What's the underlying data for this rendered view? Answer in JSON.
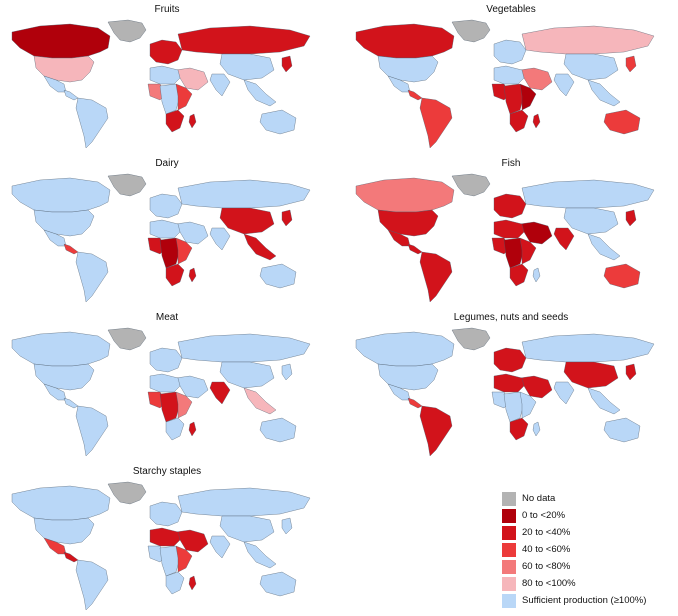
{
  "panels": [
    {
      "title": "Fruits",
      "fills": {
        "canada": "c0",
        "usa": "c4",
        "greenland": "nodata",
        "mexico": "c6",
        "central": "c6",
        "south_america": "c6",
        "europe": "c1",
        "russia": "c1",
        "middle_east": "c4",
        "africa_n": "c6",
        "africa_w": "c3",
        "africa_c": "c6",
        "africa_e": "c2",
        "africa_s": "c1",
        "madagascar": "c1",
        "india": "c6",
        "china": "c6",
        "se_asia": "c6",
        "japan": "c1",
        "australia": "c6"
      }
    },
    {
      "title": "Vegetables",
      "fills": {
        "canada": "c1",
        "usa": "c6",
        "greenland": "nodata",
        "mexico": "c6",
        "central": "c2",
        "south_america": "c2",
        "europe": "c6",
        "russia": "c4",
        "middle_east": "c3",
        "africa_n": "c6",
        "africa_w": "c1",
        "africa_c": "c1",
        "africa_e": "c0",
        "africa_s": "c1",
        "madagascar": "c1",
        "india": "c6",
        "china": "c6",
        "se_asia": "c6",
        "japan": "c2",
        "australia": "c2"
      }
    },
    {
      "title": "Dairy",
      "fills": {
        "canada": "c6",
        "usa": "c6",
        "greenland": "nodata",
        "mexico": "c6",
        "central": "c2",
        "south_america": "c6",
        "europe": "c6",
        "russia": "c6",
        "middle_east": "c6",
        "africa_n": "c6",
        "africa_w": "c1",
        "africa_c": "c0",
        "africa_e": "c2",
        "africa_s": "c1",
        "madagascar": "c1",
        "india": "c6",
        "china": "c1",
        "se_asia": "c1",
        "japan": "c1",
        "australia": "c6"
      }
    },
    {
      "title": "Fish",
      "fills": {
        "canada": "c3",
        "usa": "c1",
        "greenland": "nodata",
        "mexico": "c1",
        "central": "c1",
        "south_america": "c1",
        "europe": "c1",
        "russia": "c6",
        "middle_east": "c0",
        "africa_n": "c1",
        "africa_w": "c1",
        "africa_c": "c0",
        "africa_e": "c1",
        "africa_s": "c1",
        "madagascar": "c6",
        "india": "c1",
        "china": "c6",
        "se_asia": "c6",
        "japan": "c1",
        "australia": "c2"
      }
    },
    {
      "title": "Meat",
      "fills": {
        "canada": "c6",
        "usa": "c6",
        "greenland": "nodata",
        "mexico": "c6",
        "central": "c6",
        "south_america": "c6",
        "europe": "c6",
        "russia": "c6",
        "middle_east": "c6",
        "africa_n": "c5",
        "africa_w": "c2",
        "africa_c": "c1",
        "africa_e": "c3",
        "africa_s": "c6",
        "madagascar": "c1",
        "india": "c1",
        "china": "c6",
        "se_asia": "c4",
        "japan": "c6",
        "australia": "c6"
      }
    },
    {
      "title": "Legumes, nuts and seeds",
      "fills": {
        "canada": "c6",
        "usa": "c6",
        "greenland": "nodata",
        "mexico": "c5",
        "central": "c2",
        "south_america": "c1",
        "europe": "c1",
        "russia": "c6",
        "middle_east": "c1",
        "africa_n": "c1",
        "africa_w": "c6",
        "africa_c": "c6",
        "africa_e": "c6",
        "africa_s": "c1",
        "madagascar": "c6",
        "india": "c6",
        "china": "c1",
        "se_asia": "c6",
        "japan": "c1",
        "australia": "c6"
      }
    },
    {
      "title": "Starchy staples",
      "fills": {
        "canada": "c6",
        "usa": "c6",
        "greenland": "nodata",
        "mexico": "c2",
        "central": "c1",
        "south_america": "c6",
        "europe": "c6",
        "russia": "c6",
        "middle_east": "c1",
        "africa_n": "c1",
        "africa_w": "c6",
        "africa_c": "c6",
        "africa_e": "c2",
        "africa_s": "c6",
        "madagascar": "c1",
        "india": "c6",
        "china": "c6",
        "se_asia": "c6",
        "japan": "c5",
        "australia": "c6"
      }
    }
  ],
  "legend": [
    {
      "key": "nodata",
      "label": "No data",
      "color": "#b3b3b3"
    },
    {
      "key": "c0",
      "label": "0 to <20%",
      "color": "#b0000b"
    },
    {
      "key": "c1",
      "label": "20 to <40%",
      "color": "#d2131b"
    },
    {
      "key": "c2",
      "label": "40 to <60%",
      "color": "#ec3b3b"
    },
    {
      "key": "c3",
      "label": "60 to <80%",
      "color": "#f3797a"
    },
    {
      "key": "c4",
      "label": "80 to <100%",
      "color": "#f6b6bb"
    },
    {
      "key": "c6",
      "label": "Sufficient production (≥100%)",
      "color": "#b9d7f7"
    }
  ]
}
